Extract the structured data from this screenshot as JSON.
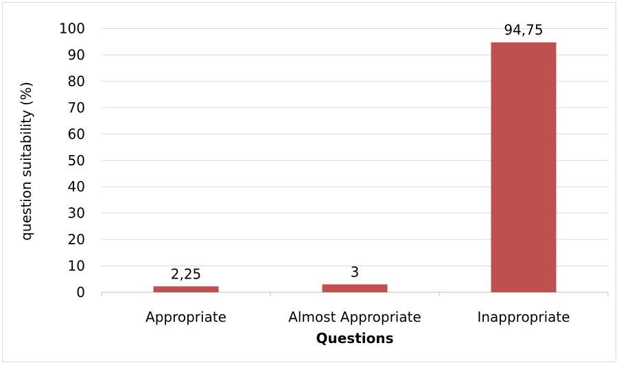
{
  "chart_data": {
    "type": "bar",
    "title": "",
    "categories": [
      "Appropriate",
      "Almost Appropriate",
      "Inappropriate"
    ],
    "values": [
      2.25,
      3,
      94.75
    ],
    "data_labels": [
      "2,25",
      "3",
      "94,75"
    ],
    "xlabel": "Questions",
    "ylabel": "question suitability (%)",
    "ylim": [
      0,
      100
    ],
    "yticks": [
      0,
      10,
      20,
      30,
      40,
      50,
      60,
      70,
      80,
      90,
      100
    ],
    "grid": true,
    "legend": "none",
    "colors": {
      "bar": "#c0504d",
      "grid": "#d9d9d9",
      "axis": "#bfbfbf"
    }
  }
}
